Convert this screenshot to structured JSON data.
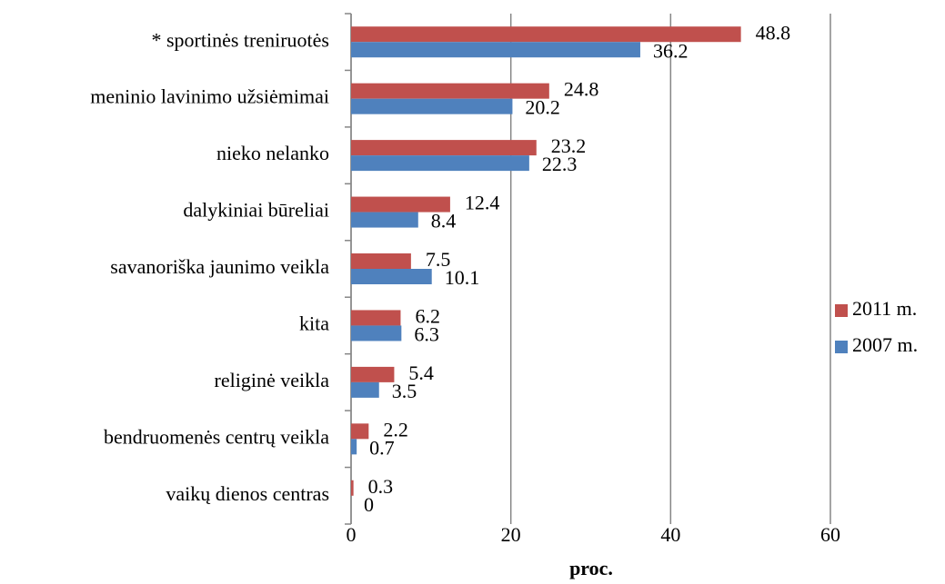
{
  "chart_data": {
    "type": "barh",
    "categories": [
      "* sportinės treniruotės",
      "meninio lavinimo užsiėmimai",
      "nieko nelanko",
      "dalykiniai būreliai",
      "savanoriška jaunimo veikla",
      "kita",
      "religinė veikla",
      "bendruomenės centrų veikla",
      "vaikų dienos centras"
    ],
    "series": [
      {
        "name": "2011 m.",
        "color": "#c0504d",
        "values": [
          48.8,
          24.8,
          23.2,
          12.4,
          7.5,
          6.2,
          5.4,
          2.2,
          0.3
        ]
      },
      {
        "name": "2007 m.",
        "color": "#4f81bd",
        "values": [
          36.2,
          20.2,
          22.3,
          8.4,
          10.1,
          6.3,
          3.5,
          0.7,
          0
        ]
      }
    ],
    "xlabel": "proc.",
    "xlim": [
      0,
      60
    ],
    "xticks": [
      0,
      20,
      40,
      60
    ],
    "grid": true,
    "legend": "right"
  }
}
